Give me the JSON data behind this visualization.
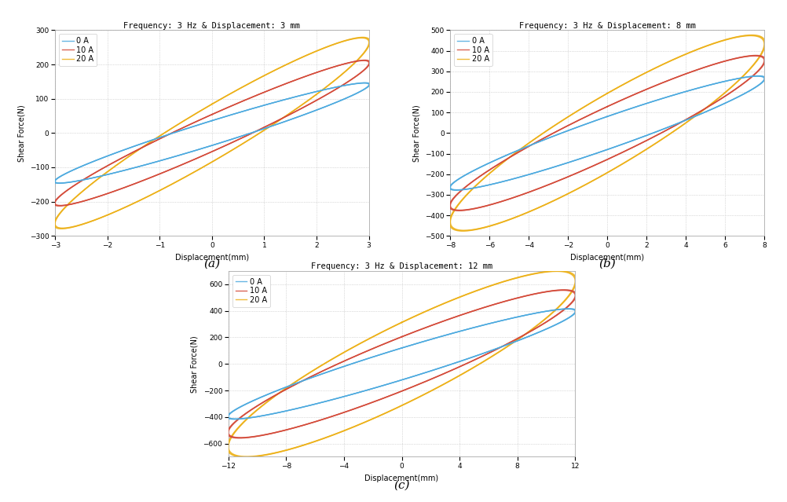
{
  "subplots": [
    {
      "title": "Frequency: 3 Hz & Displacement: 3 mm",
      "xlabel": "Displacement(mm)",
      "ylabel": "Shear Force(N)",
      "xlim": [
        -3,
        3
      ],
      "ylim": [
        -300,
        300
      ],
      "xticks": [
        -3,
        -2,
        -1,
        0,
        1,
        2,
        3
      ],
      "yticks": [
        -300,
        -200,
        -100,
        0,
        100,
        200,
        300
      ],
      "label": "(a)",
      "amp": 3,
      "params": [
        {
          "k": 47,
          "c": 12,
          "color": "#4DAADF",
          "label": "0 A"
        },
        {
          "k": 68,
          "c": 18,
          "color": "#D44B3A",
          "label": "10 A"
        },
        {
          "k": 88,
          "c": 28,
          "color": "#EDB118",
          "label": "20 A"
        }
      ]
    },
    {
      "title": "Frequency: 3 Hz & Displacement: 8 mm",
      "xlabel": "Displacement(mm)",
      "ylabel": "Shear Force(N)",
      "xlim": [
        -8,
        8
      ],
      "ylim": [
        -500,
        500
      ],
      "xticks": [
        -8,
        -6,
        -4,
        -2,
        0,
        2,
        4,
        6,
        8
      ],
      "yticks": [
        -500,
        -400,
        -300,
        -200,
        -100,
        0,
        100,
        200,
        300,
        400,
        500
      ],
      "label": "(b)",
      "amp": 8,
      "params": [
        {
          "k": 33,
          "c": 10,
          "color": "#4DAADF",
          "label": "0 A"
        },
        {
          "k": 44,
          "c": 16,
          "color": "#D44B3A",
          "label": "10 A"
        },
        {
          "k": 54,
          "c": 24,
          "color": "#EDB118",
          "label": "20 A"
        }
      ]
    },
    {
      "title": "Frequency: 3 Hz & Displacement: 12 mm",
      "xlabel": "Displacement(mm)",
      "ylabel": "Shear Force(N)",
      "xlim": [
        -12,
        12
      ],
      "ylim": [
        -700,
        700
      ],
      "xticks": [
        -12,
        -8,
        -4,
        0,
        4,
        8,
        12
      ],
      "yticks": [
        -600,
        -400,
        -200,
        0,
        200,
        400,
        600
      ],
      "label": "(c)",
      "amp": 12,
      "params": [
        {
          "k": 33,
          "c": 10,
          "color": "#4DAADF",
          "label": "0 A"
        },
        {
          "k": 43,
          "c": 17,
          "color": "#D44B3A",
          "label": "10 A"
        },
        {
          "k": 52,
          "c": 26,
          "color": "#EDB118",
          "label": "20 A"
        }
      ]
    }
  ],
  "line_width": 1.0,
  "title_fontsize": 7.5,
  "label_fontsize": 7,
  "tick_fontsize": 6.5,
  "legend_fontsize": 7,
  "subplot_label_fontsize": 11,
  "background_color": "#FFFFFF",
  "grid_color": "#BBBBBB",
  "grid_style": ":"
}
